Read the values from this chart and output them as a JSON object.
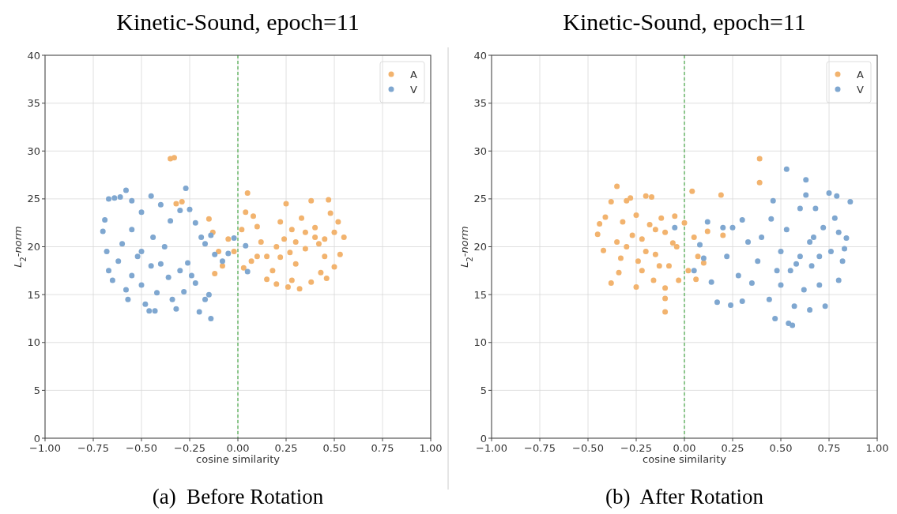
{
  "chart_data": [
    {
      "type": "scatter",
      "title": "Kinetic-Sound, epoch=11",
      "xlabel": "cosine similarity",
      "ylabel": "L$_{2}$-norm",
      "annotations": [
        "(a)  Before Rotation"
      ],
      "xlim": [
        -1,
        1
      ],
      "ylim": [
        0,
        40
      ],
      "xticks": [
        {
          "value": -1,
          "label": "−1.00"
        },
        {
          "value": -0.75,
          "label": "−0.75"
        },
        {
          "value": -0.5,
          "label": "−0.50"
        },
        {
          "value": -0.25,
          "label": "−0.25"
        },
        {
          "value": 0,
          "label": "0.00"
        },
        {
          "value": 0.25,
          "label": "0.25"
        },
        {
          "value": 0.5,
          "label": "0.50"
        },
        {
          "value": 0.75,
          "label": "0.75"
        },
        {
          "value": 1,
          "label": "1.00"
        }
      ],
      "yticks": [
        0,
        5,
        10,
        15,
        20,
        25,
        30,
        35,
        40
      ],
      "grid": true,
      "legend": "top right",
      "marker": "circle",
      "ref_lines": [
        {
          "axis": "x",
          "value": 0,
          "color": "#2ca02c",
          "line_style": "dashed"
        }
      ],
      "series": [
        {
          "name": "A",
          "color": "#f2b36e",
          "x": [
            0.02,
            0.05,
            0.04,
            0.08,
            0.1,
            0.12,
            0.15,
            0.18,
            0.2,
            0.22,
            0.25,
            0.24,
            0.27,
            0.3,
            0.28,
            0.32,
            0.35,
            0.33,
            0.38,
            0.4,
            0.42,
            0.45,
            0.43,
            0.47,
            0.48,
            0.5,
            0.52,
            0.55,
            0.53,
            0.5,
            0.46,
            0.38,
            0.26,
            0.15,
            0.07,
            0.03,
            -0.02,
            -0.05,
            -0.08,
            -0.1,
            -0.12,
            -0.13,
            -0.15,
            -0.29,
            -0.32,
            -0.35,
            -0.33,
            0.2,
            0.3,
            0.35,
            0.22,
            0.4,
            0.1,
            0.28,
            0.45
          ],
          "values": [
            21.8,
            25.6,
            23.6,
            23.2,
            22.1,
            20.5,
            19.0,
            17.5,
            16.1,
            22.6,
            24.5,
            20.8,
            19.4,
            18.2,
            16.5,
            15.6,
            21.5,
            23.0,
            24.8,
            22.0,
            20.3,
            19.0,
            17.3,
            24.9,
            23.5,
            21.5,
            22.6,
            21.0,
            19.2,
            17.9,
            16.7,
            16.3,
            15.8,
            16.6,
            18.5,
            17.8,
            19.5,
            20.8,
            18.0,
            19.5,
            17.2,
            21.5,
            22.9,
            24.7,
            24.5,
            29.2,
            29.3,
            20.0,
            20.5,
            19.8,
            18.9,
            21.0,
            19.0,
            21.8,
            20.8
          ]
        },
        {
          "name": "V",
          "color": "#7fa7d0",
          "x": [
            -0.7,
            -0.69,
            -0.67,
            -0.64,
            -0.61,
            -0.58,
            -0.55,
            -0.5,
            -0.45,
            -0.4,
            -0.35,
            -0.3,
            -0.27,
            -0.25,
            -0.22,
            -0.19,
            -0.17,
            -0.14,
            -0.12,
            -0.08,
            -0.05,
            -0.02,
            0.04,
            0.05,
            -0.68,
            -0.67,
            -0.65,
            -0.62,
            -0.6,
            -0.58,
            -0.57,
            -0.55,
            -0.52,
            -0.5,
            -0.48,
            -0.46,
            -0.43,
            -0.42,
            -0.4,
            -0.38,
            -0.36,
            -0.34,
            -0.32,
            -0.3,
            -0.28,
            -0.26,
            -0.24,
            -0.22,
            -0.2,
            -0.17,
            -0.14,
            -0.15,
            -0.45,
            -0.5,
            -0.44,
            -0.55
          ],
          "values": [
            21.6,
            22.8,
            25.0,
            25.1,
            25.2,
            25.9,
            24.8,
            23.6,
            25.3,
            24.4,
            22.7,
            23.8,
            26.1,
            23.9,
            22.5,
            21.0,
            20.3,
            21.2,
            19.2,
            18.5,
            19.3,
            20.9,
            20.1,
            17.4,
            19.5,
            17.5,
            16.5,
            18.5,
            20.3,
            15.5,
            14.5,
            17.0,
            19.0,
            16.0,
            14.0,
            13.3,
            13.3,
            15.2,
            18.2,
            20.0,
            16.8,
            14.5,
            13.5,
            17.5,
            15.3,
            18.3,
            17.0,
            16.2,
            13.2,
            14.5,
            12.5,
            15.0,
            18.0,
            19.5,
            21.0,
            21.8
          ]
        }
      ]
    },
    {
      "type": "scatter",
      "title": "Kinetic-Sound, epoch=11",
      "xlabel": "cosine similarity",
      "ylabel": "L$_{2}$-norm",
      "annotations": [
        "(b)  After Rotation"
      ],
      "xlim": [
        -1,
        1
      ],
      "ylim": [
        0,
        40
      ],
      "xticks": [
        {
          "value": -1,
          "label": "−1.00"
        },
        {
          "value": -0.75,
          "label": "−0.75"
        },
        {
          "value": -0.5,
          "label": "−0.50"
        },
        {
          "value": -0.25,
          "label": "−0.25"
        },
        {
          "value": 0,
          "label": "0.00"
        },
        {
          "value": 0.25,
          "label": "0.25"
        },
        {
          "value": 0.5,
          "label": "0.50"
        },
        {
          "value": 0.75,
          "label": "0.75"
        },
        {
          "value": 1,
          "label": "1.00"
        }
      ],
      "yticks": [
        0,
        5,
        10,
        15,
        20,
        25,
        30,
        35,
        40
      ],
      "grid": true,
      "legend": "top right",
      "marker": "circle",
      "ref_lines": [
        {
          "axis": "x",
          "value": 0,
          "color": "#2ca02c",
          "line_style": "dashed"
        }
      ],
      "series": [
        {
          "name": "A",
          "color": "#f2b36e",
          "x": [
            -0.45,
            -0.44,
            -0.42,
            -0.41,
            -0.38,
            -0.35,
            -0.35,
            -0.38,
            -0.34,
            -0.32,
            -0.3,
            -0.28,
            -0.25,
            -0.24,
            -0.25,
            -0.22,
            -0.2,
            -0.17,
            -0.18,
            -0.15,
            -0.16,
            -0.12,
            -0.1,
            -0.1,
            -0.1,
            -0.1,
            -0.08,
            -0.05,
            -0.04,
            -0.03,
            0.0,
            0.02,
            0.04,
            0.05,
            0.07,
            0.06,
            0.1,
            0.12,
            0.19,
            0.2,
            0.39,
            0.39,
            -0.3,
            -0.2,
            -0.27,
            -0.13,
            -0.06,
            -0.33,
            -0.22,
            -0.15
          ],
          "values": [
            21.3,
            22.4,
            19.6,
            23.1,
            24.7,
            26.3,
            20.5,
            16.2,
            17.3,
            22.6,
            24.8,
            25.1,
            23.3,
            18.5,
            15.8,
            20.8,
            25.3,
            25.2,
            22.3,
            19.2,
            16.5,
            23.0,
            21.5,
            15.7,
            14.6,
            13.2,
            18.0,
            23.2,
            20.0,
            16.5,
            22.5,
            17.5,
            25.8,
            21.0,
            19.0,
            16.6,
            18.3,
            21.6,
            25.4,
            21.2,
            29.2,
            26.7,
            20.0,
            19.5,
            21.2,
            18.0,
            20.4,
            18.8,
            17.5,
            21.8
          ]
        },
        {
          "name": "V",
          "color": "#7fa7d0",
          "x": [
            0.1,
            0.12,
            0.14,
            0.17,
            0.2,
            0.22,
            0.24,
            0.25,
            0.28,
            0.3,
            0.3,
            0.33,
            0.35,
            0.38,
            0.4,
            0.44,
            0.45,
            0.46,
            0.47,
            0.5,
            0.5,
            0.53,
            0.53,
            0.54,
            0.56,
            0.55,
            0.57,
            0.6,
            0.6,
            0.62,
            0.63,
            0.63,
            0.65,
            0.66,
            0.67,
            0.68,
            0.7,
            0.72,
            0.73,
            0.75,
            0.76,
            0.78,
            0.79,
            0.8,
            0.8,
            0.82,
            0.84,
            0.86,
            0.83,
            0.7,
            0.58,
            0.65,
            0.48,
            0.05,
            0.08,
            -0.05
          ],
          "values": [
            18.8,
            22.6,
            16.3,
            14.2,
            22.0,
            19.0,
            13.9,
            22.0,
            17.0,
            22.8,
            14.3,
            20.5,
            16.2,
            18.5,
            21.0,
            14.5,
            22.9,
            24.8,
            12.5,
            19.5,
            16.0,
            28.1,
            21.8,
            12.0,
            11.8,
            17.5,
            13.8,
            24.0,
            19.0,
            15.5,
            27.0,
            25.4,
            13.4,
            18.0,
            21.0,
            24.0,
            16.0,
            22.0,
            13.8,
            25.6,
            19.5,
            23.0,
            25.3,
            21.5,
            16.5,
            18.5,
            20.9,
            24.7,
            19.8,
            19.0,
            18.2,
            20.5,
            17.5,
            17.5,
            20.2,
            22.0
          ]
        }
      ]
    }
  ]
}
